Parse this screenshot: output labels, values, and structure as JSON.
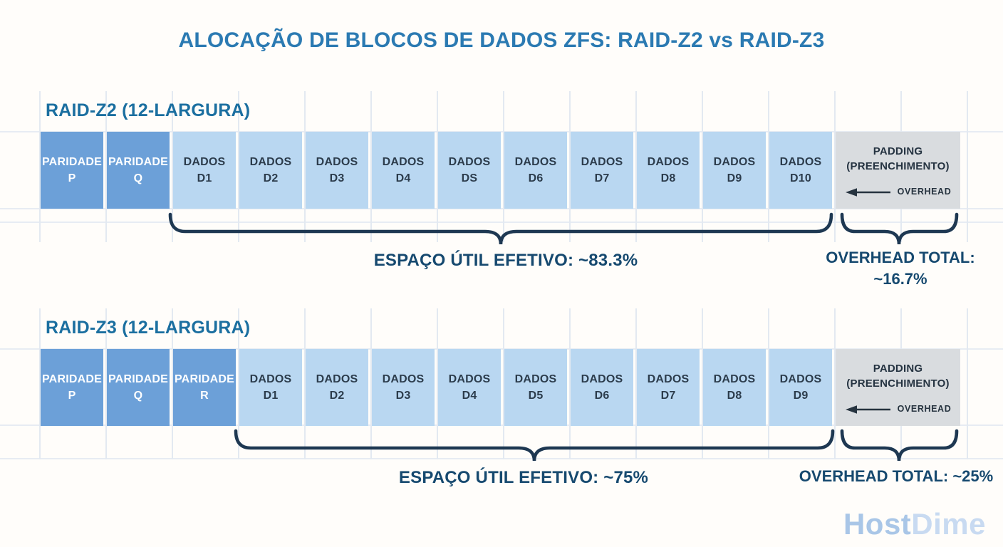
{
  "title": "ALOCAÇÃO DE BLOCOS DE DADOS ZFS: RAID-Z2 vs RAID-Z3",
  "colors": {
    "title_text": "#2b7ab2",
    "heading_text": "#1b6fa0",
    "parity_block": "#6ca0d8",
    "data_block": "#b9d7f1",
    "padding_block": "#d9dcdf",
    "brace": "#1e3852",
    "annotation_text": "#16496f",
    "block_text": "#2c3c4c",
    "parity_text": "#ffffff",
    "watermark_host": "#a9c6e7",
    "watermark_dime": "#c8daf1"
  },
  "sections": [
    {
      "heading": "RAID-Z2 (12-LARGURA)",
      "blocks": [
        {
          "type": "parity",
          "line1": "PARIDADE",
          "line2": "P"
        },
        {
          "type": "parity",
          "line1": "PARIDADE",
          "line2": "Q"
        },
        {
          "type": "data",
          "line1": "DADOS",
          "line2": "D1"
        },
        {
          "type": "data",
          "line1": "DADOS",
          "line2": "D2"
        },
        {
          "type": "data",
          "line1": "DADOS",
          "line2": "D3"
        },
        {
          "type": "data",
          "line1": "DADOS",
          "line2": "D4"
        },
        {
          "type": "data",
          "line1": "DADOS",
          "line2": "DS"
        },
        {
          "type": "data",
          "line1": "DADOS",
          "line2": "D6"
        },
        {
          "type": "data",
          "line1": "DADOS",
          "line2": "D7"
        },
        {
          "type": "data",
          "line1": "DADOS",
          "line2": "D8"
        },
        {
          "type": "data",
          "line1": "DADOS",
          "line2": "D9"
        },
        {
          "type": "data",
          "line1": "DADOS",
          "line2": "D10"
        }
      ],
      "padding_block": {
        "line1": "PADDING",
        "line2": "(PREENCHIMENTO)",
        "overhead_label": "OVERHEAD"
      },
      "useful_space_label": "ESPAÇO ÚTIL EFETIVO: ~83.3%",
      "overhead_total_lines": [
        "OVERHEAD TOTAL:",
        "~16.7%"
      ]
    },
    {
      "heading": "RAID-Z3 (12-LARGURA)",
      "blocks": [
        {
          "type": "parity",
          "line1": "PARIDADE",
          "line2": "P"
        },
        {
          "type": "parity",
          "line1": "PARIDADE",
          "line2": "Q"
        },
        {
          "type": "parity",
          "line1": "PARIDADE",
          "line2": "R"
        },
        {
          "type": "data",
          "line1": "DADOS",
          "line2": "D1"
        },
        {
          "type": "data",
          "line1": "DADOS",
          "line2": "D2"
        },
        {
          "type": "data",
          "line1": "DADOS",
          "line2": "D3"
        },
        {
          "type": "data",
          "line1": "DADOS",
          "line2": "D4"
        },
        {
          "type": "data",
          "line1": "DADOS",
          "line2": "D5"
        },
        {
          "type": "data",
          "line1": "DADOS",
          "line2": "D6"
        },
        {
          "type": "data",
          "line1": "DADOS",
          "line2": "D7"
        },
        {
          "type": "data",
          "line1": "DADOS",
          "line2": "D8"
        },
        {
          "type": "data",
          "line1": "DADOS",
          "line2": "D9"
        }
      ],
      "padding_block": {
        "line1": "PADDING",
        "line2": "(PREENCHIMENTO)",
        "overhead_label": "OVERHEAD"
      },
      "useful_space_label": "ESPAÇO ÚTIL EFETIVO: ~75%",
      "overhead_total_lines": [
        "OVERHEAD TOTAL: ~25%"
      ]
    }
  ],
  "watermark": {
    "host": "Host",
    "dime": "Dime"
  }
}
